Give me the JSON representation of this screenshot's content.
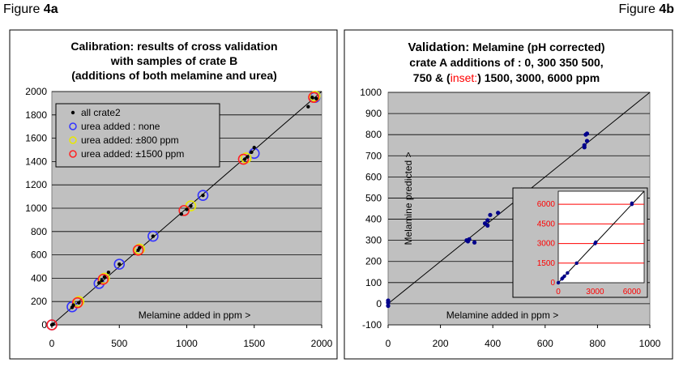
{
  "figure_labels": {
    "a_prefix": "Figure ",
    "a_bold": "4a",
    "b_prefix": "Figure ",
    "b_bold": "4b"
  },
  "chart_data": [
    {
      "type": "scatter",
      "title_lines": [
        "Calibration: results of cross validation",
        "with samples of crate B",
        "(additions of both melamine and urea)"
      ],
      "xlabel": "Melamine added in ppm >",
      "xlim": [
        0,
        2000
      ],
      "ylim": [
        0,
        2000
      ],
      "xticks": [
        0,
        500,
        1000,
        1500,
        2000
      ],
      "yticks": [
        0,
        200,
        400,
        600,
        800,
        1000,
        1200,
        1400,
        1600,
        1800,
        2000
      ],
      "grid": "horizontal",
      "legend": "top-left",
      "series": [
        {
          "name": "all crate2",
          "marker": "dot",
          "color": "#000000",
          "points": [
            [
              0,
              0
            ],
            [
              10,
              5
            ],
            [
              150,
              150
            ],
            [
              160,
              170
            ],
            [
              200,
              190
            ],
            [
              350,
              360
            ],
            [
              370,
              380
            ],
            [
              390,
              410
            ],
            [
              420,
              450
            ],
            [
              500,
              520
            ],
            [
              640,
              640
            ],
            [
              650,
              660
            ],
            [
              750,
              760
            ],
            [
              960,
              950
            ],
            [
              1000,
              990
            ],
            [
              1030,
              1020
            ],
            [
              1120,
              1110
            ],
            [
              1430,
              1420
            ],
            [
              1450,
              1440
            ],
            [
              1480,
              1480
            ],
            [
              1500,
              1520
            ],
            [
              1900,
              1870
            ],
            [
              1930,
              1950
            ],
            [
              1960,
              1940
            ]
          ]
        },
        {
          "name": "urea added : none",
          "marker": "circle",
          "color": "#3333ff",
          "points": [
            [
              0,
              0
            ],
            [
              150,
              155
            ],
            [
              350,
              355
            ],
            [
              500,
              520
            ],
            [
              750,
              760
            ],
            [
              1120,
              1110
            ],
            [
              1500,
              1470
            ],
            [
              1950,
              1950
            ]
          ]
        },
        {
          "name": "urea added: ±800 ppm",
          "marker": "circle",
          "color": "#e8e800",
          "points": [
            [
              200,
              200
            ],
            [
              390,
              400
            ],
            [
              650,
              650
            ],
            [
              1030,
              1020
            ],
            [
              1440,
              1430
            ],
            [
              1950,
              1960
            ]
          ]
        },
        {
          "name": "urea added: ±1500 ppm",
          "marker": "circle",
          "color": "#ff2222",
          "points": [
            [
              0,
              0
            ],
            [
              190,
              190
            ],
            [
              380,
              390
            ],
            [
              640,
              640
            ],
            [
              980,
              980
            ],
            [
              1420,
              1420
            ],
            [
              1940,
              1950
            ]
          ]
        }
      ],
      "reference_line": [
        [
          0,
          0
        ],
        [
          2000,
          2000
        ]
      ]
    },
    {
      "type": "scatter",
      "title_lines": [
        {
          "bold": "Validation:",
          "rest": " Melamine (pH corrected)"
        },
        "crate A additions of : 0, 300 350 500,",
        {
          "pre": "750 & (",
          "red": "inset:",
          "post": ") 1500, 3000, 6000  ppm"
        }
      ],
      "xlabel": "Melamine added in ppm >",
      "ylabel": "Melamine predicted >",
      "xlim": [
        0,
        1000
      ],
      "ylim": [
        -100,
        1000
      ],
      "xticks": [
        0,
        200,
        400,
        600,
        800,
        1000
      ],
      "yticks": [
        -100,
        0,
        100,
        200,
        300,
        400,
        500,
        600,
        700,
        800,
        900,
        1000
      ],
      "grid": "horizontal",
      "series": [
        {
          "name": "",
          "color": "#00008b",
          "points": [
            [
              0,
              -10
            ],
            [
              0,
              5
            ],
            [
              0,
              15
            ],
            [
              300,
              300
            ],
            [
              310,
              305
            ],
            [
              305,
              295
            ],
            [
              330,
              290
            ],
            [
              370,
              380
            ],
            [
              380,
              395
            ],
            [
              380,
              370
            ],
            [
              390,
              420
            ],
            [
              420,
              430
            ],
            [
              500,
              490
            ],
            [
              510,
              540
            ],
            [
              500,
              510
            ],
            [
              530,
              520
            ],
            [
              750,
              740
            ],
            [
              755,
              800
            ],
            [
              760,
              805
            ],
            [
              760,
              770
            ],
            [
              750,
              750
            ]
          ]
        }
      ],
      "reference_line": [
        [
          0,
          0
        ],
        [
          1000,
          1000
        ]
      ],
      "inset": {
        "xlim": [
          0,
          7000
        ],
        "ylim": [
          0,
          7000
        ],
        "xticks": [
          0,
          3000,
          6000
        ],
        "yticks": [
          0,
          1500,
          3000,
          4500,
          6000
        ],
        "grid": "horizontal-red",
        "points": [
          [
            0,
            0
          ],
          [
            300,
            300
          ],
          [
            350,
            350
          ],
          [
            500,
            500
          ],
          [
            750,
            750
          ],
          [
            1500,
            1500
          ],
          [
            3000,
            3000
          ],
          [
            3050,
            3100
          ],
          [
            6000,
            6000
          ],
          [
            6000,
            6080
          ]
        ]
      }
    }
  ]
}
